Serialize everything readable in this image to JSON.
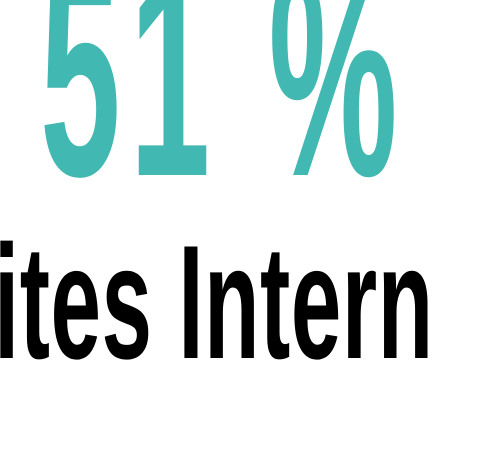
{
  "stat": {
    "value": "51",
    "unit": "%",
    "color": "#41b8b1"
  },
  "caption": {
    "text": "ites Intern",
    "color": "#000000"
  }
}
